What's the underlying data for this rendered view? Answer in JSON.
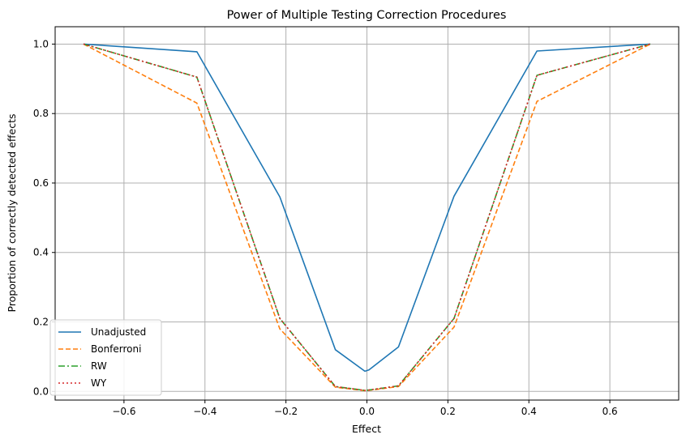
{
  "chart_data": {
    "type": "line",
    "title": "Power of Multiple Testing Correction Procedures",
    "xlabel": "Effect",
    "ylabel": "Proportion of correctly detected effects",
    "xlim": [
      -0.77,
      0.77
    ],
    "ylim": [
      -0.025,
      1.05
    ],
    "grid": true,
    "legend_position": "lower-left",
    "x_ticks": [
      -0.6,
      -0.4,
      -0.2,
      0.0,
      0.2,
      0.4,
      0.6
    ],
    "x_tick_labels": [
      "−0.6",
      "−0.4",
      "−0.2",
      "0.0",
      "0.2",
      "0.4",
      "0.6"
    ],
    "y_ticks": [
      0.0,
      0.2,
      0.4,
      0.6,
      0.8,
      1.0
    ],
    "y_tick_labels": [
      "0.0",
      "0.2",
      "0.4",
      "0.6",
      "0.8",
      "1.0"
    ],
    "series": [
      {
        "name": "Unadjusted",
        "color": "#1f77b4",
        "style": "solid",
        "x": [
          -0.7,
          -0.42,
          -0.215,
          -0.078,
          -0.005,
          0.005,
          0.078,
          0.215,
          0.42,
          0.7
        ],
        "y": [
          1.0,
          0.978,
          0.56,
          0.12,
          0.058,
          0.062,
          0.128,
          0.562,
          0.98,
          1.0
        ]
      },
      {
        "name": "Bonferroni",
        "color": "#ff7f0e",
        "style": "dashed",
        "x": [
          -0.7,
          -0.42,
          -0.215,
          -0.078,
          -0.005,
          0.005,
          0.078,
          0.215,
          0.42,
          0.7
        ],
        "y": [
          1.0,
          0.83,
          0.18,
          0.012,
          0.002,
          0.003,
          0.014,
          0.185,
          0.835,
          1.0
        ]
      },
      {
        "name": "RW",
        "color": "#2ca02c",
        "style": "dashdot",
        "x": [
          -0.7,
          -0.42,
          -0.215,
          -0.078,
          -0.005,
          0.005,
          0.078,
          0.215,
          0.42,
          0.7
        ],
        "y": [
          1.0,
          0.905,
          0.21,
          0.014,
          0.003,
          0.004,
          0.016,
          0.21,
          0.91,
          1.0
        ]
      },
      {
        "name": "WY",
        "color": "#d62728",
        "style": "dotted",
        "x": [
          -0.7,
          -0.42,
          -0.215,
          -0.078,
          -0.005,
          0.005,
          0.078,
          0.215,
          0.42,
          0.7
        ],
        "y": [
          1.0,
          0.905,
          0.21,
          0.014,
          0.003,
          0.004,
          0.016,
          0.21,
          0.91,
          1.0
        ]
      }
    ]
  }
}
